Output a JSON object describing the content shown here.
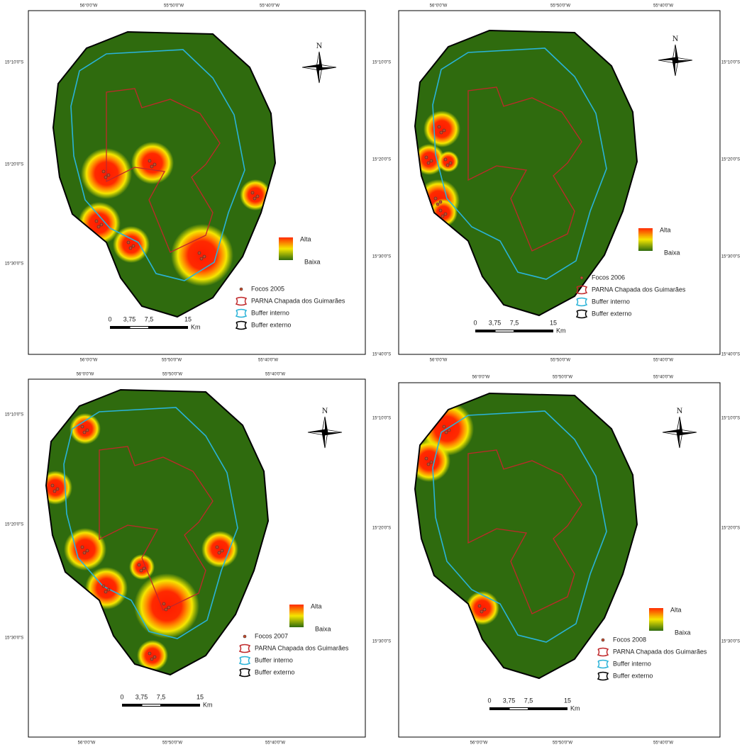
{
  "panels": [
    {
      "top": [
        "56°0'0\"W",
        "55°50'0\"W",
        "55°40'0\"W"
      ],
      "left": [
        "15°10'0\"S",
        "15°20'0\"S",
        "15°30'0\"S"
      ],
      "right": [],
      "bottom": [
        "56°0'0\"W",
        "55°50'0\"W",
        "55°40'0\"W"
      ],
      "north": "N",
      "high": "Alta",
      "low": "Baixa",
      "legend": [
        "Focos 2005",
        "PARNA Chapada dos Guimarães",
        "Buffer interno",
        "Buffer externo"
      ],
      "scale": [
        "0",
        "3,75",
        "7,5",
        "15"
      ],
      "unit": "Km"
    },
    {
      "top": [
        "56°0'0\"W",
        "55°50'0\"W",
        "55°40'0\"W"
      ],
      "left": [
        "15°10'0\"S",
        "15°20'0\"S",
        "15°30'0\"S",
        "15°40'0\"S"
      ],
      "right": [
        "15°10'0\"S",
        "15°20'0\"S",
        "15°30'0\"S",
        "15°40'0\"S"
      ],
      "bottom": [
        "56°0'0\"W",
        "55°50'0\"W",
        "55°40'0\"W"
      ],
      "north": "N",
      "high": "Alta",
      "low": "Baixa",
      "legend": [
        "Focos 2006",
        "PARNA Chapada dos Guimarães",
        "Buffer interno",
        "Buffer externo"
      ],
      "scale": [
        "0",
        "3,75",
        "7,5",
        "15"
      ],
      "unit": "Km"
    },
    {
      "top": [
        "56°0'0\"W",
        "55°50'0\"W",
        "55°40'0\"W"
      ],
      "left": [
        "15°10'0\"S",
        "15°20'0\"S",
        "15°30'0\"S"
      ],
      "right": [],
      "bottom": [
        "56°0'0\"W",
        "55°50'0\"W",
        "55°40'0\"W"
      ],
      "north": "N",
      "high": "Alta",
      "low": "Baixa",
      "legend": [
        "Focos 2007",
        "PARNA Chapada dos Guimarães",
        "Buffer interno",
        "Buffer externo"
      ],
      "scale": [
        "0",
        "3,75",
        "7,5",
        "15"
      ],
      "unit": "Km"
    },
    {
      "top": [
        "56°0'0\"W",
        "55°50'0\"W",
        "55°40'0\"W"
      ],
      "left": [
        "15°10'0\"S",
        "15°20'0\"S",
        "15°30'0\"S"
      ],
      "right": [
        "15°10'0\"S",
        "15°20'0\"S",
        "15°30'0\"S"
      ],
      "bottom": [
        "56°0'0\"W",
        "55°50'0\"W",
        "55°40'0\"W"
      ],
      "north": "N",
      "high": "Alta",
      "low": "Baixa",
      "legend": [
        "Focos 2008",
        "PARNA Chapada dos Guimarães",
        "Buffer interno",
        "Buffer externo"
      ],
      "scale": [
        "0",
        "3,75",
        "7,5",
        "15"
      ],
      "unit": "Km"
    }
  ]
}
